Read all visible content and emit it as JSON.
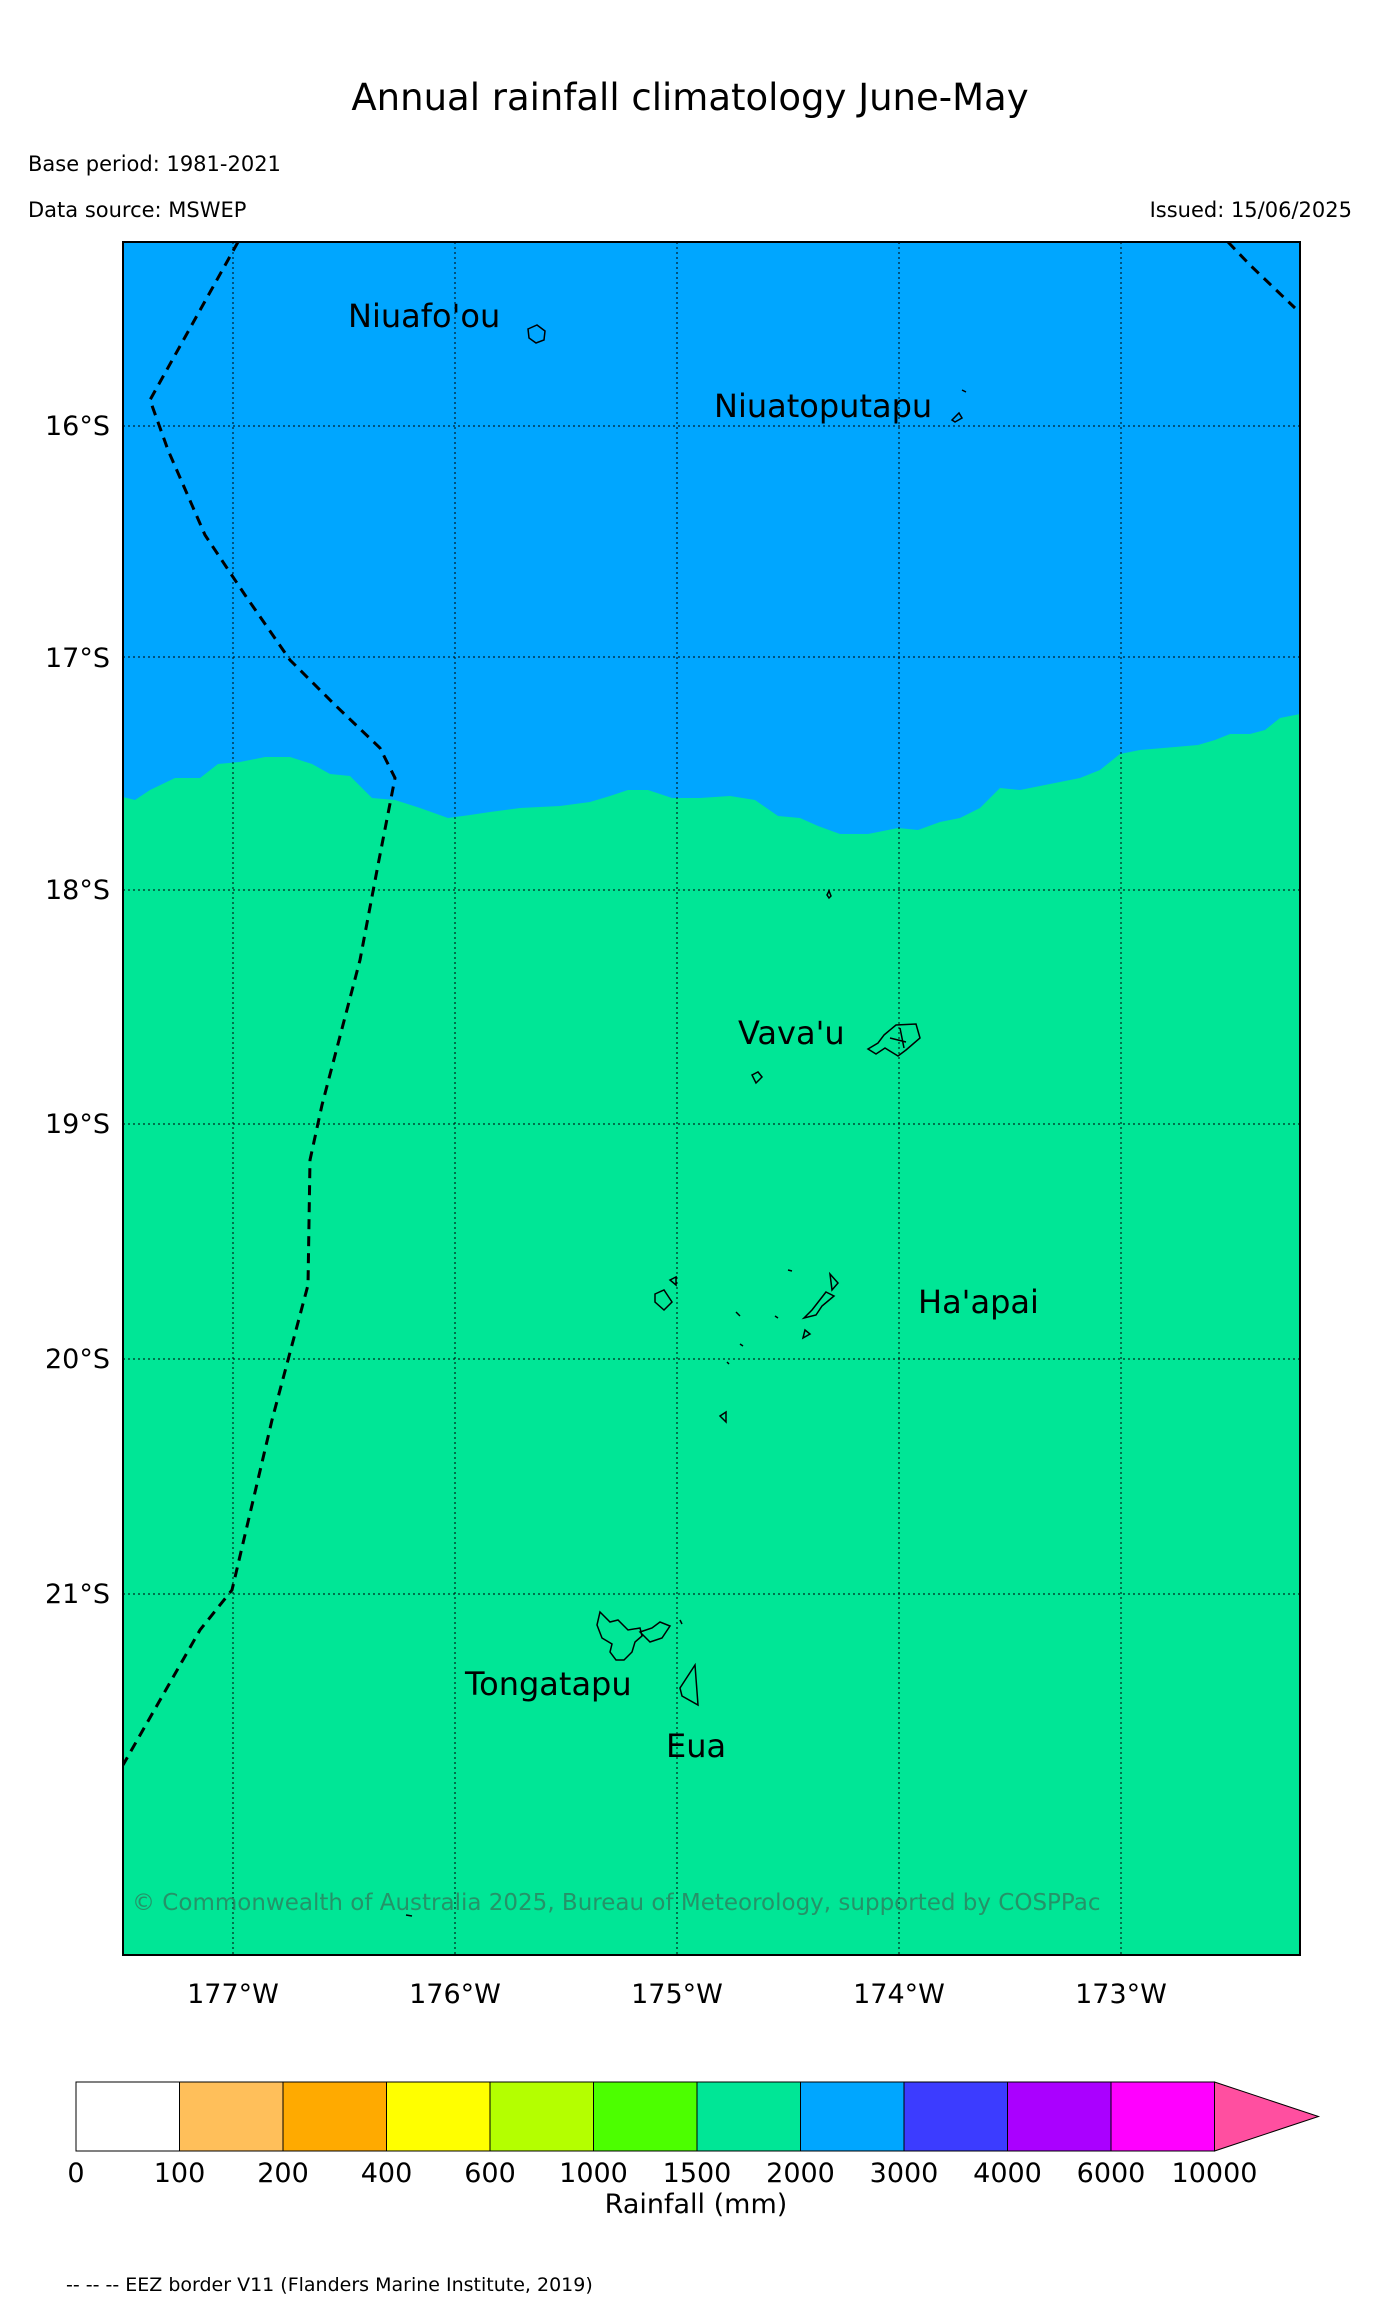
{
  "header": {
    "title": "Annual rainfall climatology June-May",
    "base_period": "Base period: 1981-2021",
    "data_source": "Data source: MSWEP",
    "issued": "Issued: 15/06/2025"
  },
  "map": {
    "lat_labels": [
      "16°S",
      "17°S",
      "18°S",
      "19°S",
      "20°S",
      "21°S"
    ],
    "lon_labels": [
      "177°W",
      "176°W",
      "175°W",
      "174°W",
      "173°W"
    ],
    "place_labels": {
      "niuafoou": "Niuafo'ou",
      "niuatoputapu": "Niuatoputapu",
      "vavau": "Vava'u",
      "haapai": "Ha'apai",
      "tongatapu": "Tongatapu",
      "eua": "Eua"
    },
    "copyright": "© Commonwealth of Australia 2025, Bureau of Meteorology, supported by COSPPac",
    "rainfall_zones": [
      {
        "range": "2000-3000 mm",
        "color": "#00a6ff",
        "region": "north"
      },
      {
        "range": "1500-2000 mm",
        "color": "#00e696",
        "region": "south"
      }
    ]
  },
  "colorbar": {
    "label": "Rainfall (mm)",
    "tick_labels": [
      "0",
      "100",
      "200",
      "400",
      "600",
      "1000",
      "1500",
      "2000",
      "3000",
      "4000",
      "6000",
      "10000"
    ],
    "colors": [
      "#ffffff",
      "#ffbf5a",
      "#ffaa00",
      "#ffff00",
      "#b4ff00",
      "#4cff00",
      "#00e696",
      "#00a6ff",
      "#3c3cff",
      "#aa00ff",
      "#ff00ff"
    ],
    "extend_color": "#ff4fa0"
  },
  "footer": {
    "eez_note": "-- -- -- EEZ border V11 (Flanders Marine Institute, 2019)"
  }
}
